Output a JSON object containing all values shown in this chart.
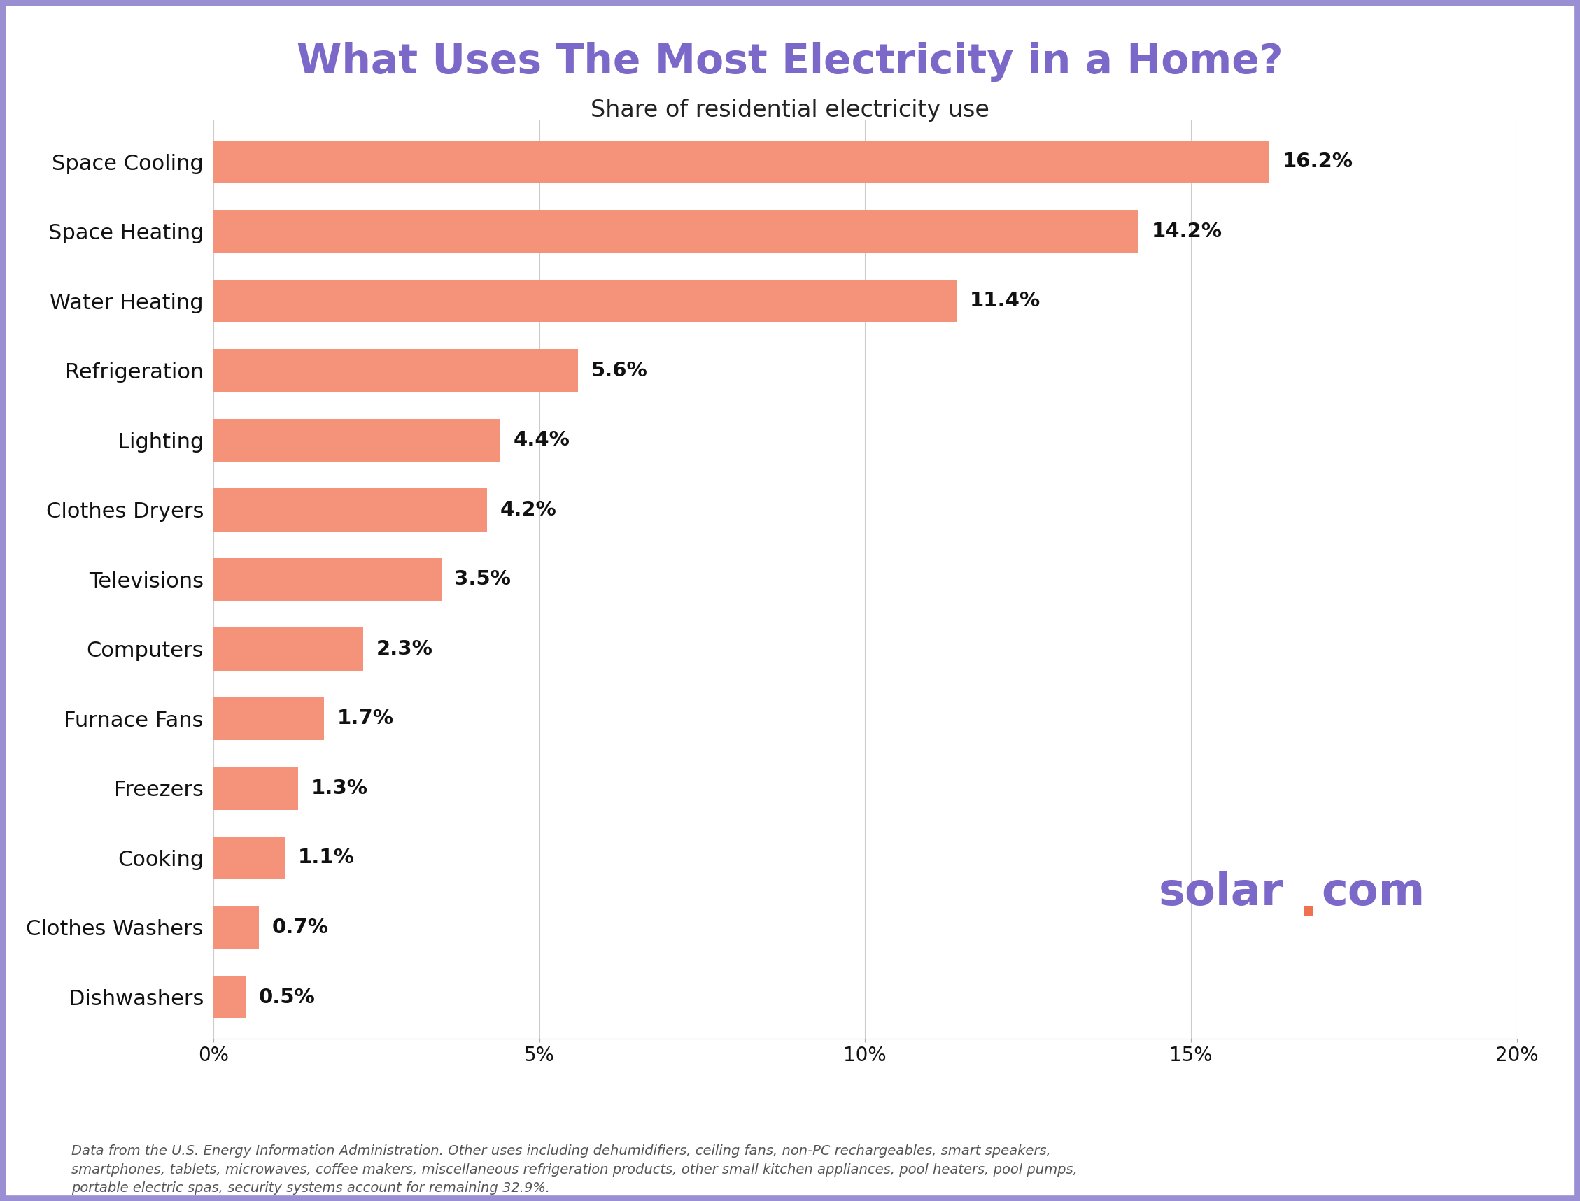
{
  "title": "What Uses The Most Electricity in a Home?",
  "subtitle": "Share of residential electricity use",
  "categories": [
    "Space Cooling",
    "Space Heating",
    "Water Heating",
    "Refrigeration",
    "Lighting",
    "Clothes Dryers",
    "Televisions",
    "Computers",
    "Furnace Fans",
    "Freezers",
    "Cooking",
    "Clothes Washers",
    "Dishwashers"
  ],
  "values": [
    16.2,
    14.2,
    11.4,
    5.6,
    4.4,
    4.2,
    3.5,
    2.3,
    1.7,
    1.3,
    1.1,
    0.7,
    0.5
  ],
  "bar_color": "#F4927A",
  "title_color": "#7B68C8",
  "subtitle_color": "#222222",
  "label_color": "#111111",
  "solar_color": "#7B68C8",
  "solar_dot_color": "#F07050",
  "background_color": "#FFFFFF",
  "border_color": "#9B8FD4",
  "footnote": "Data from the U.S. Energy Information Administration. Other uses including dehumidifiers, ceiling fans, non-PC rechargeables, smart speakers,\nsmartphones, tablets, microwaves, coffee makers, miscellaneous refrigeration products, other small kitchen appliances, pool heaters, pool pumps,\nportable electric spas, security systems account for remaining 32.9%.",
  "xlim": [
    0,
    20
  ],
  "xtick_labels": [
    "0%",
    "5%",
    "10%",
    "15%",
    "20%"
  ],
  "xtick_vals": [
    0,
    5,
    10,
    15,
    20
  ],
  "title_fontsize": 42,
  "subtitle_fontsize": 24,
  "ylabel_fontsize": 22,
  "bar_label_fontsize": 21,
  "tick_fontsize": 20,
  "footnote_fontsize": 14,
  "solar_fontsize": 46
}
